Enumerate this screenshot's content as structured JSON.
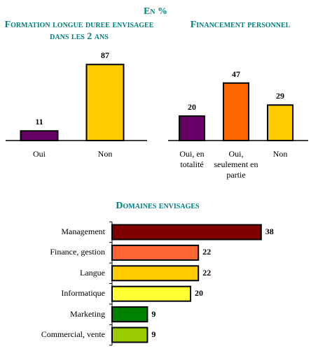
{
  "title": "En %",
  "chart_data": [
    {
      "type": "bar",
      "title": "Formation longue duree envisagee dans les 2 ans",
      "categories": [
        "Oui",
        "Non"
      ],
      "values": [
        11,
        87
      ],
      "colors": [
        "#660066",
        "#ffcc00"
      ]
    },
    {
      "type": "bar",
      "title": "Financement personnel",
      "categories": [
        "Oui, en totalité",
        "Oui, seulement en partie",
        "Non"
      ],
      "values": [
        20,
        47,
        29
      ],
      "colors": [
        "#660066",
        "#ff6600",
        "#ffcc00"
      ]
    },
    {
      "type": "barh",
      "title": "Domaines envisages",
      "categories": [
        "Management",
        "Finance, gestion",
        "Langue",
        "Informatique",
        "Marketing",
        "Commercial, vente"
      ],
      "values": [
        38,
        22,
        22,
        20,
        9,
        9
      ],
      "colors": [
        "#800000",
        "#ff6633",
        "#ffcc00",
        "#ffff33",
        "#008000",
        "#99cc00"
      ]
    }
  ]
}
